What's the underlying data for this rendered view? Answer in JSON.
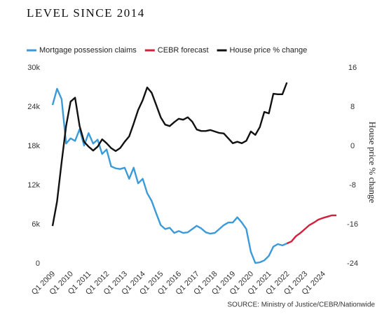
{
  "chart_data": {
    "type": "line",
    "title": "LEVEL SINCE 2014",
    "y2_label": "House price % change",
    "source": "SOURCE: Ministry of Justice/CEBR/Nationwide",
    "x": [
      2009,
      2009.25,
      2009.5,
      2009.75,
      2010,
      2010.25,
      2010.5,
      2010.75,
      2011,
      2011.25,
      2011.5,
      2011.75,
      2012,
      2012.25,
      2012.5,
      2012.75,
      2013,
      2013.25,
      2013.5,
      2013.75,
      2014,
      2014.25,
      2014.5,
      2014.75,
      2015,
      2015.25,
      2015.5,
      2015.75,
      2016,
      2016.25,
      2016.5,
      2016.75,
      2017,
      2017.25,
      2017.5,
      2017.75,
      2018,
      2018.25,
      2018.5,
      2018.75,
      2019,
      2019.25,
      2019.5,
      2019.75,
      2020,
      2020.25,
      2020.5,
      2020.75,
      2021,
      2021.25,
      2021.5,
      2021.75,
      2022,
      2022.25,
      2022.5,
      2022.75,
      2023,
      2023.25,
      2023.5,
      2023.75,
      2024,
      2024.25,
      2024.5,
      2024.75
    ],
    "xlim": [
      2009,
      2024.75
    ],
    "xticks": [
      {
        "value": 2009,
        "label": "Q1 2009"
      },
      {
        "value": 2010,
        "label": "Q1 2010"
      },
      {
        "value": 2011,
        "label": "Q1 2011"
      },
      {
        "value": 2012,
        "label": "Q1 2012"
      },
      {
        "value": 2013,
        "label": "Q1 2013"
      },
      {
        "value": 2014,
        "label": "Q1 2014"
      },
      {
        "value": 2015,
        "label": "Q1 2015"
      },
      {
        "value": 2016,
        "label": "Q1 2016"
      },
      {
        "value": 2017,
        "label": "Q1 2017"
      },
      {
        "value": 2018,
        "label": "Q1 2018"
      },
      {
        "value": 2019,
        "label": "Q1 2019"
      },
      {
        "value": 2020,
        "label": "Q1 2020"
      },
      {
        "value": 2021,
        "label": "Q1 2021"
      },
      {
        "value": 2022,
        "label": "Q1 2022"
      },
      {
        "value": 2023,
        "label": "Q1 2023"
      },
      {
        "value": 2024,
        "label": "Q1 2024"
      }
    ],
    "ylim": [
      0,
      30000
    ],
    "yticks": [
      0,
      {
        "value": 6000,
        "label": "6k"
      },
      {
        "value": 12000,
        "label": "12k"
      },
      {
        "value": 18000,
        "label": "18k"
      },
      {
        "value": 24000,
        "label": "24k"
      },
      {
        "value": 30000,
        "label": "30k"
      }
    ],
    "y2lim": [
      -24,
      16
    ],
    "y2ticks": [
      -24,
      -16,
      -8,
      0,
      8,
      16
    ],
    "series": [
      {
        "name": "Mortgage possession claims",
        "color": "#3b9ad9",
        "values": [
          24300,
          26800,
          25200,
          18400,
          19200,
          18800,
          20600,
          18100,
          20000,
          18400,
          19000,
          16800,
          17500,
          14900,
          14600,
          14500,
          14700,
          13000,
          14700,
          12300,
          13000,
          10800,
          9600,
          7700,
          5900,
          5300,
          5500,
          4700,
          5000,
          4700,
          4800,
          5300,
          5800,
          5400,
          4800,
          4600,
          4700,
          5300,
          5900,
          6300,
          6300,
          7100,
          6300,
          5300,
          1800,
          100,
          200,
          500,
          1200,
          2600,
          3000,
          2800,
          3100,
          null,
          null,
          null,
          null,
          null,
          null,
          null,
          null,
          null,
          null,
          null
        ]
      },
      {
        "name": "CEBR forecast",
        "color": "#d0213d",
        "values": [
          null,
          null,
          null,
          null,
          null,
          null,
          null,
          null,
          null,
          null,
          null,
          null,
          null,
          null,
          null,
          null,
          null,
          null,
          null,
          null,
          null,
          null,
          null,
          null,
          null,
          null,
          null,
          null,
          null,
          null,
          null,
          null,
          null,
          null,
          null,
          null,
          null,
          null,
          null,
          null,
          null,
          null,
          null,
          null,
          null,
          null,
          null,
          null,
          null,
          null,
          null,
          null,
          3100,
          3400,
          4200,
          4700,
          5300,
          5900,
          6300,
          6750,
          7000,
          7200,
          7400,
          7400
        ]
      },
      {
        "name": "House price % change",
        "color": "#111111",
        "axis": "y2",
        "values": [
          -16.3,
          -11.3,
          -3.3,
          4.1,
          9.1,
          9.9,
          4.1,
          0.9,
          -0.1,
          -0.9,
          -0.1,
          1.4,
          0.6,
          -0.4,
          -1.0,
          -0.4,
          0.9,
          2.0,
          4.6,
          7.4,
          9.4,
          12.0,
          10.9,
          8.4,
          5.9,
          4.4,
          4.1,
          4.9,
          5.6,
          5.4,
          5.9,
          5.0,
          3.4,
          3.1,
          3.1,
          3.3,
          3.0,
          2.7,
          2.6,
          1.6,
          0.6,
          0.9,
          0.6,
          1.1,
          3.0,
          2.3,
          3.9,
          7.0,
          6.7,
          10.7,
          10.6,
          10.6,
          13.0,
          null,
          null,
          null,
          null,
          null,
          null,
          null,
          null,
          null,
          null,
          null
        ]
      }
    ]
  }
}
